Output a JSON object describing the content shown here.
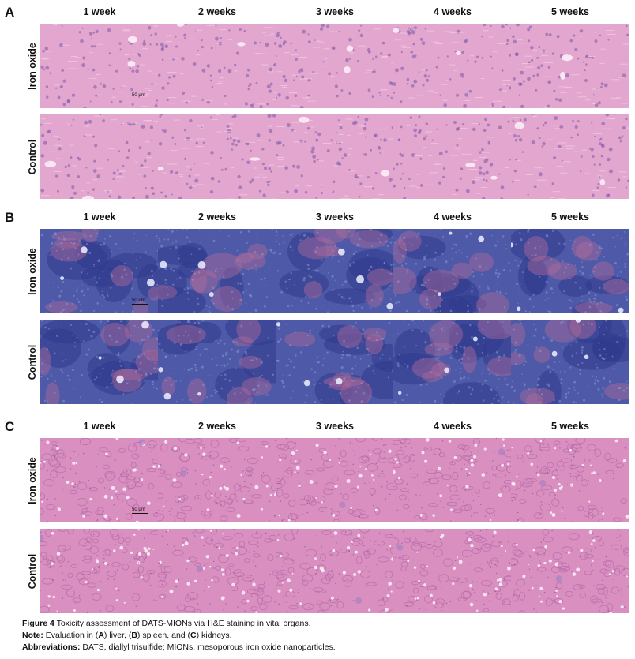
{
  "panels": [
    {
      "letter": "A",
      "tissue": "liver"
    },
    {
      "letter": "B",
      "tissue": "spleen"
    },
    {
      "letter": "C",
      "tissue": "kidney"
    }
  ],
  "columns": [
    "1 week",
    "2 weeks",
    "3 weeks",
    "4 weeks",
    "5 weeks"
  ],
  "rows": [
    "Iron oxide",
    "Control"
  ],
  "scale_bar": "50 µm",
  "caption": {
    "figure_label": "Figure 4",
    "figure_text": " Toxicity assessment of DATS-MIONs via H&E staining in vital organs.",
    "note_label": "Note:",
    "note_text_1": " Evaluation in (",
    "note_A": "A",
    "note_text_2": ") liver, (",
    "note_B": "B",
    "note_text_3": ") spleen, and (",
    "note_C": "C",
    "note_text_4": ") kidneys.",
    "abbr_label": "Abbreviations:",
    "abbr_text": " DATS, diallyl trisulfide; MIONs, mesoporous iron oxide nanoparticles."
  },
  "colors": {
    "liver_base": "#e3a6cf",
    "spleen_base": "#4e5aa8",
    "kidney_base": "#d98fbf"
  }
}
